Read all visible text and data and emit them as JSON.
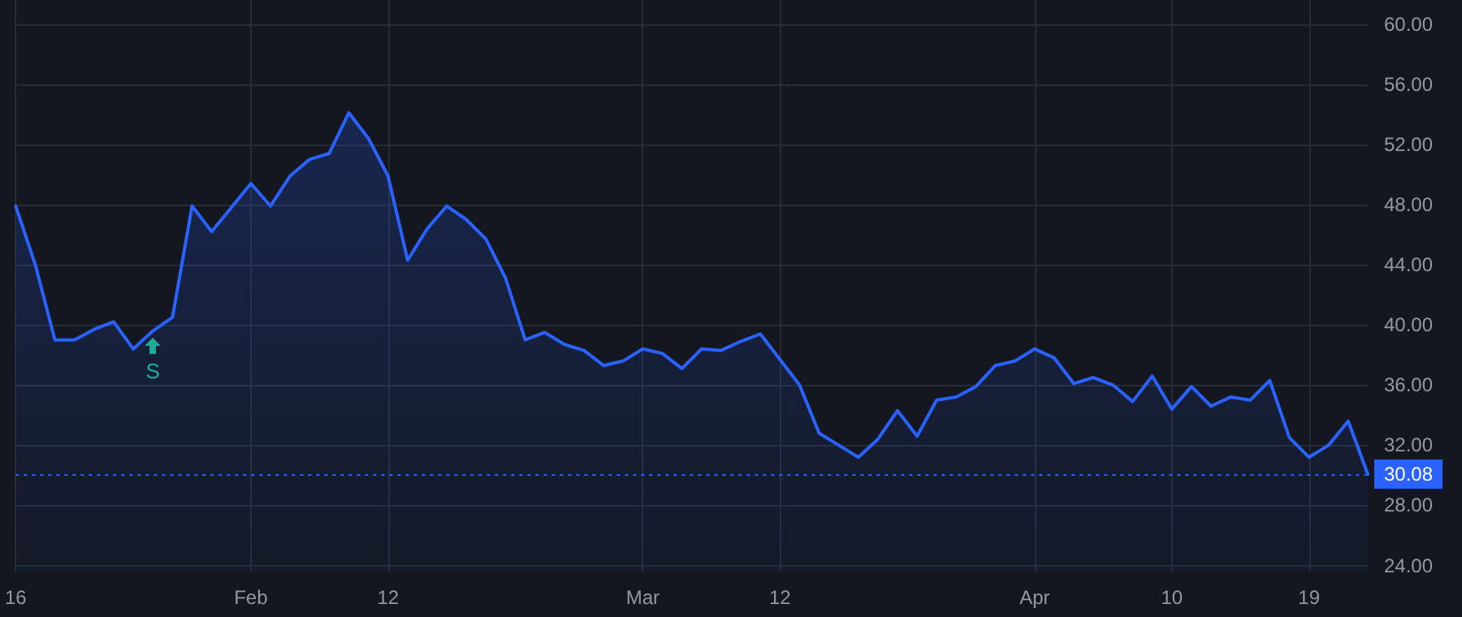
{
  "chart_data": {
    "type": "area",
    "categories": [
      "16",
      null,
      null,
      null,
      null,
      null,
      null,
      null,
      null,
      null,
      null,
      null,
      "Feb",
      null,
      null,
      null,
      null,
      null,
      null,
      "12",
      null,
      null,
      null,
      null,
      null,
      null,
      null,
      null,
      null,
      null,
      null,
      null,
      "Mar",
      null,
      null,
      null,
      null,
      null,
      null,
      "12",
      null,
      null,
      null,
      null,
      null,
      null,
      null,
      null,
      null,
      null,
      null,
      null,
      "Apr",
      null,
      null,
      null,
      null,
      null,
      null,
      "10",
      null,
      null,
      null,
      null,
      null,
      null,
      "19",
      null,
      null,
      null
    ],
    "series": [
      {
        "color": "#2962ff",
        "values": [
          47.9,
          44.0,
          39.0,
          39.0,
          39.7,
          40.2,
          38.4,
          39.6,
          40.5,
          47.9,
          46.2,
          47.8,
          49.4,
          47.9,
          49.9,
          51.0,
          51.4,
          54.1,
          52.4,
          49.9,
          44.3,
          46.4,
          47.9,
          47.0,
          45.7,
          43.1,
          39.0,
          39.5,
          38.7,
          38.3,
          37.3,
          37.6,
          38.4,
          38.1,
          37.1,
          38.4,
          38.3,
          38.9,
          39.4,
          37.7,
          36.0,
          32.8,
          32.0,
          31.2,
          32.4,
          34.3,
          32.6,
          35.0,
          35.2,
          35.9,
          37.3,
          37.6,
          38.4,
          37.8,
          36.1,
          36.5,
          36.0,
          34.9,
          36.6,
          34.4,
          35.9,
          34.6,
          35.2,
          35.0,
          36.3,
          32.5,
          31.2,
          32.0,
          33.6,
          30.08
        ]
      }
    ],
    "ylim": [
      23.6,
      61.6
    ],
    "yticks": [
      {
        "value": 24,
        "label": "24.00"
      },
      {
        "value": 28,
        "label": "28.00"
      },
      {
        "value": 32,
        "label": "32.00"
      },
      {
        "value": 36,
        "label": "36.00"
      },
      {
        "value": 40,
        "label": "40.00"
      },
      {
        "value": 44,
        "label": "44.00"
      },
      {
        "value": 48,
        "label": "48.00"
      },
      {
        "value": 52,
        "label": "52.00"
      },
      {
        "value": 56,
        "label": "56.00"
      },
      {
        "value": 60,
        "label": "60.00"
      }
    ],
    "ref_lines": [
      {
        "axis": "y",
        "value": 30.08,
        "label": "30.08",
        "color": "#2962ff",
        "line_style": "dotted"
      }
    ],
    "annotations": [
      "S"
    ],
    "grid": true,
    "marker": "none",
    "line_style": "solid"
  }
}
